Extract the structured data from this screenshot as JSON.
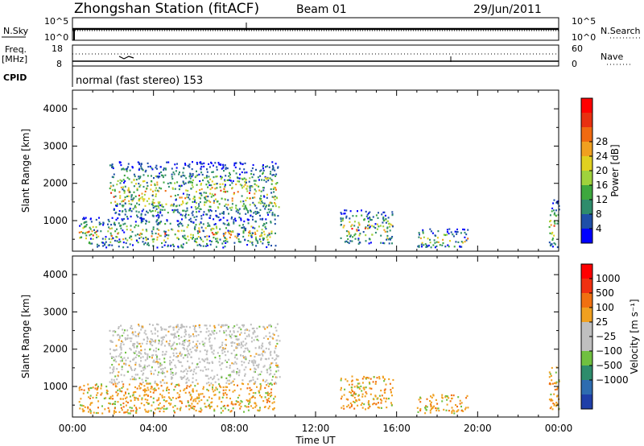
{
  "header": {
    "station": "Zhongshan Station (fitACF)",
    "beam": "Beam 01",
    "date": "29/Jun/2011"
  },
  "top_panels": {
    "nsky_label": "N.Sky",
    "nsky_ticks": [
      "10^5",
      "10^0"
    ],
    "nsearch_label": "N.Search",
    "nsearch_ticks": [
      "10^5",
      "10^0"
    ],
    "freq_label": "Freq.",
    "freq_unit": "[MHz]",
    "freq_ticks": [
      "18",
      "8"
    ],
    "nave_label": "Nave",
    "nave_ticks": [
      "60",
      "0"
    ],
    "cpid_label": "CPID",
    "cpid_value": "normal (fast stereo) 153"
  },
  "chart_data": [
    {
      "type": "heatmap",
      "title": "",
      "xlabel": "Time UT",
      "ylabel": "Slant Range [km]",
      "xlim_hours": [
        0,
        24
      ],
      "ylim_km": [
        180,
        4500
      ],
      "yticks": [
        "1000",
        "2000",
        "3000",
        "4000"
      ],
      "colorbar_label": "Power [dB]",
      "colorbar_ticks": [
        "4",
        "8",
        "12",
        "16",
        "20",
        "24",
        "28"
      ],
      "colors": [
        "#0000ff",
        "#1f4fa8",
        "#2e8c6c",
        "#3ea83e",
        "#9fd23c",
        "#e0d020",
        "#f0a020",
        "#f06a10",
        "#e83010",
        "#ff0000"
      ],
      "echo_regions": [
        {
          "t": [
            1.8,
            10.2
          ],
          "r": [
            1100,
            2600
          ],
          "level": "12-28 dB"
        },
        {
          "t": [
            0.3,
            10.0
          ],
          "r": [
            300,
            1100
          ],
          "level": "4-20 dB"
        },
        {
          "t": [
            13.2,
            15.8
          ],
          "r": [
            400,
            1300
          ],
          "level": "4-12 dB"
        },
        {
          "t": [
            17.0,
            19.5
          ],
          "r": [
            300,
            800
          ],
          "level": "8-24 dB"
        },
        {
          "t": [
            23.5,
            24.0
          ],
          "r": [
            300,
            1600
          ],
          "level": "4-16 dB"
        }
      ]
    },
    {
      "type": "heatmap",
      "title": "",
      "xlabel": "Time UT",
      "ylabel": "Slant Range [km]",
      "xlim_hours": [
        0,
        24
      ],
      "ylim_km": [
        180,
        4500
      ],
      "yticks": [
        "1000",
        "2000",
        "3000",
        "4000"
      ],
      "colorbar_label": "Velocity [m s⁻¹]",
      "colorbar_ticks": [
        "1000",
        "500",
        "100",
        "25",
        "−25",
        "−100",
        "−500",
        "−1000"
      ],
      "colors": [
        "#1f3fa8",
        "#2e6cb0",
        "#2e8c6c",
        "#70c040",
        "#bfbfbf",
        "#bfbfbf",
        "#f0a020",
        "#f07010",
        "#f03010",
        "#ff0000"
      ],
      "echo_regions": [
        {
          "t": [
            1.8,
            10.2
          ],
          "r": [
            1100,
            2700
          ],
          "level": "−25 to 25 m/s"
        },
        {
          "t": [
            0.3,
            10.0
          ],
          "r": [
            300,
            1100
          ],
          "level": "−500 to 100 m/s"
        },
        {
          "t": [
            13.2,
            15.8
          ],
          "r": [
            400,
            1300
          ],
          "level": "−100 to 500 m/s"
        },
        {
          "t": [
            17.0,
            19.5
          ],
          "r": [
            300,
            800
          ],
          "level": "−500 to −100 m/s"
        },
        {
          "t": [
            23.5,
            24.0
          ],
          "r": [
            300,
            1600
          ],
          "level": "−500 to 100 m/s"
        }
      ]
    }
  ],
  "time_axis": {
    "ticks": [
      "00:00",
      "04:00",
      "08:00",
      "12:00",
      "16:00",
      "20:00",
      "00:00"
    ],
    "label": "Time UT"
  }
}
